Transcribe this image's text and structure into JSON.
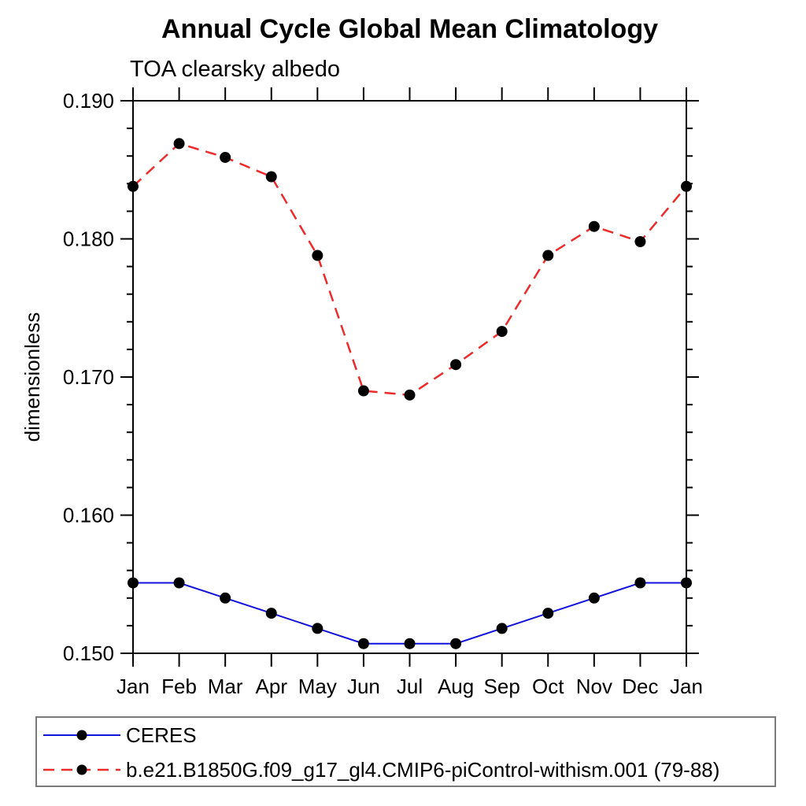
{
  "title": "Annual Cycle Global Mean Climatology",
  "subtitle": "TOA clearsky albedo",
  "chart_data": {
    "type": "line",
    "categories": [
      "Jan",
      "Feb",
      "Mar",
      "Apr",
      "May",
      "Jun",
      "Jul",
      "Aug",
      "Sep",
      "Oct",
      "Nov",
      "Dec",
      "Jan"
    ],
    "series": [
      {
        "name": "CERES",
        "color": "#1212dd",
        "line_style": "solid",
        "line_width": 2,
        "marker": "filled-circle",
        "marker_color": "#000000",
        "values": [
          0.1551,
          0.1551,
          0.154,
          0.1529,
          0.1518,
          0.1507,
          0.1507,
          0.1507,
          0.1518,
          0.1529,
          0.154,
          0.1551,
          0.1551
        ]
      },
      {
        "name": "b.e21.B1850G.f09_g17_gl4.CMIP6-piControl-withism.001 (79-88)",
        "color": "#ee2b2b",
        "line_style": "dashed",
        "line_width": 2.5,
        "marker": "filled-circle",
        "marker_color": "#000000",
        "values": [
          0.1838,
          0.1869,
          0.1859,
          0.1845,
          0.1788,
          0.169,
          0.1687,
          0.1709,
          0.1733,
          0.1788,
          0.1809,
          0.1798,
          0.1838
        ]
      }
    ],
    "xlabel": "",
    "ylabel": "dimensionless",
    "ylim": [
      0.15,
      0.19
    ],
    "ytick_major_step": 0.01,
    "ytick_minor_step": 0.002,
    "ytick_labels": [
      "0.150",
      "0.160",
      "0.170",
      "0.180",
      "0.190"
    ],
    "grid": false,
    "legend_position": "bottom-left-box",
    "frame_color": "#000000"
  }
}
